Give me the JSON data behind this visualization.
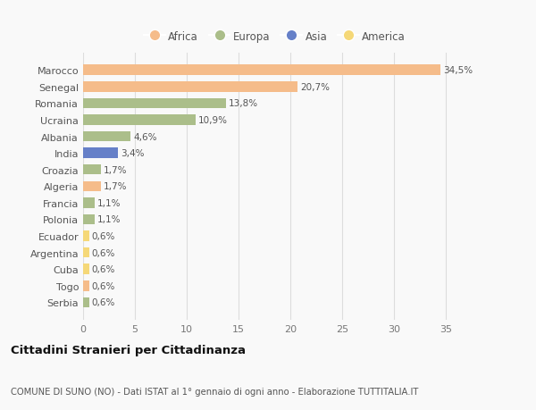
{
  "countries": [
    "Marocco",
    "Senegal",
    "Romania",
    "Ucraina",
    "Albania",
    "India",
    "Croazia",
    "Algeria",
    "Francia",
    "Polonia",
    "Ecuador",
    "Argentina",
    "Cuba",
    "Togo",
    "Serbia"
  ],
  "values": [
    34.5,
    20.7,
    13.8,
    10.9,
    4.6,
    3.4,
    1.7,
    1.7,
    1.1,
    1.1,
    0.6,
    0.6,
    0.6,
    0.6,
    0.6
  ],
  "labels": [
    "34,5%",
    "20,7%",
    "13,8%",
    "10,9%",
    "4,6%",
    "3,4%",
    "1,7%",
    "1,7%",
    "1,1%",
    "1,1%",
    "0,6%",
    "0,6%",
    "0,6%",
    "0,6%",
    "0,6%"
  ],
  "continents": [
    "Africa",
    "Africa",
    "Europa",
    "Europa",
    "Europa",
    "Asia",
    "Europa",
    "Africa",
    "Europa",
    "Europa",
    "America",
    "America",
    "America",
    "Africa",
    "Europa"
  ],
  "colors": {
    "Africa": "#F5BC8A",
    "Europa": "#ABBE8A",
    "Asia": "#6680C8",
    "America": "#F5D878"
  },
  "xlim": [
    0,
    37
  ],
  "xticks": [
    0,
    5,
    10,
    15,
    20,
    25,
    30,
    35
  ],
  "title": "Cittadini Stranieri per Cittadinanza",
  "subtitle": "COMUNE DI SUNO (NO) - Dati ISTAT al 1° gennaio di ogni anno - Elaborazione TUTTITALIA.IT",
  "bg_color": "#f9f9f9",
  "grid_color": "#dddddd",
  "bar_height": 0.62
}
